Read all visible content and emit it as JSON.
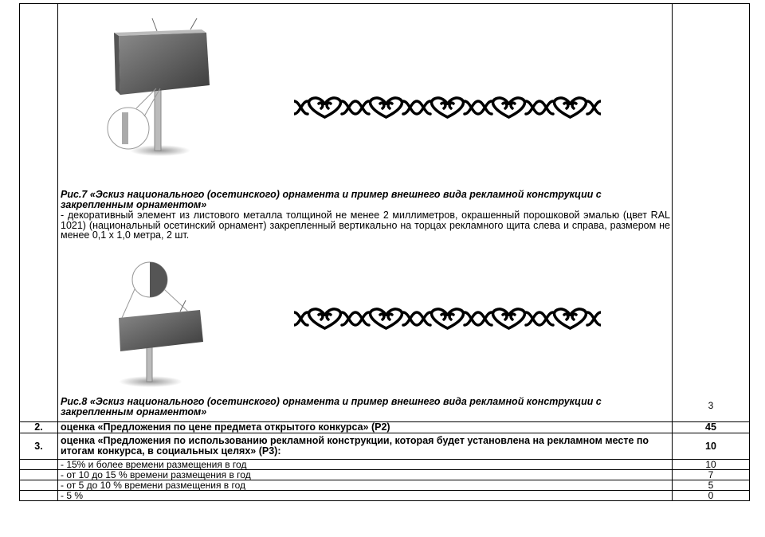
{
  "figures": [
    {
      "caption": "Рис.7 «Эскиз  национального (осетинского) орнамента и пример внешнего вида рекламной конструкции с закрепленным орнаментом»",
      "description": "- декоративный элемент из листового металла толщиной не менее 2 миллиметров, окрашенный порошковой эмалью (цвет RAL 1021)  (национальный осетинский орнамент) закрепленный вертикально на торцах рекламного щита слева и справа,  размером не менее 0,1 х 1,0 метра, 2 шт."
    },
    {
      "caption": "Рис.8 «Эскиз  национального (осетинского) орнамента и пример внешнего вида рекламной конструкции с закрепленным орнаментом»"
    }
  ],
  "table": {
    "first_row_score": "3",
    "rows": [
      {
        "number": "2.",
        "text": "оценка «Предложения по цене предмета открытого конкурса» (Р2)",
        "score": "45"
      },
      {
        "number": "3.",
        "text": "оценка «Предложения по использованию рекламной конструкции, которая будет установлена на рекламном месте по итогам конкурса, в социальных целях» (Р3):",
        "score": "10"
      },
      {
        "text": "- 15% и более времени размещения в год",
        "score": "10"
      },
      {
        "text": "- от 10 до 15 % времени размещения в год",
        "score": "7"
      },
      {
        "text": "- от 5 до 10 % времени размещения в год",
        "score": "5"
      },
      {
        "text": "- 5 %",
        "score": "0"
      }
    ]
  }
}
